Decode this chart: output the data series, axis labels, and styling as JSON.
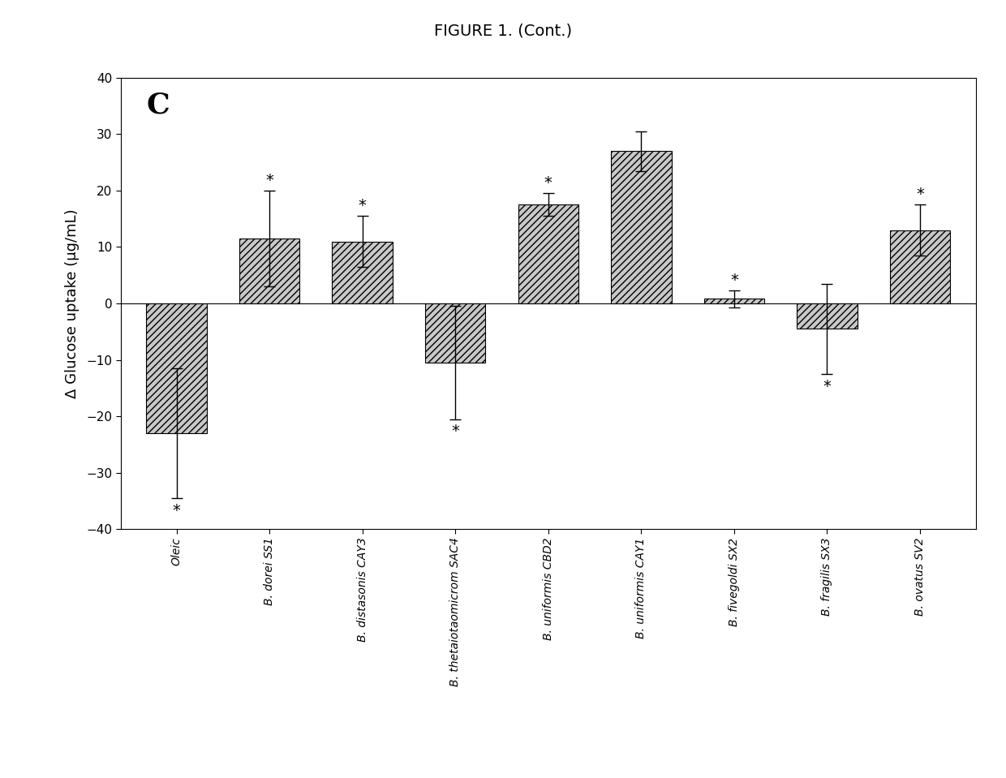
{
  "categories": [
    "Oleic",
    "B. dorei SS1",
    "B. distasonis CAY3",
    "B. thetaiotaomicrom SAC4",
    "B. uniformis CBD2",
    "B. uniformis CAY1",
    "B. fivegoldi SX2",
    "B. fragilis SX3",
    "B. ovatus SV2"
  ],
  "values": [
    -23.0,
    11.5,
    11.0,
    -10.5,
    17.5,
    27.0,
    0.8,
    -4.5,
    13.0
  ],
  "errors": [
    11.5,
    8.5,
    4.5,
    10.0,
    2.0,
    3.5,
    1.5,
    8.0,
    4.5
  ],
  "significant": [
    true,
    true,
    true,
    true,
    true,
    false,
    true,
    true,
    true
  ],
  "ylabel": "Δ Glucose uptake (µg/mL)",
  "ylim": [
    -40,
    40
  ],
  "yticks": [
    -40,
    -30,
    -20,
    -10,
    0,
    10,
    20,
    30,
    40
  ],
  "panel_label": "C",
  "figure_title": "FIGURE 1. (Cont.)",
  "bar_color": "#c8c8c8",
  "hatch": "////",
  "background_color": "#ffffff",
  "bar_edge_color": "#000000"
}
